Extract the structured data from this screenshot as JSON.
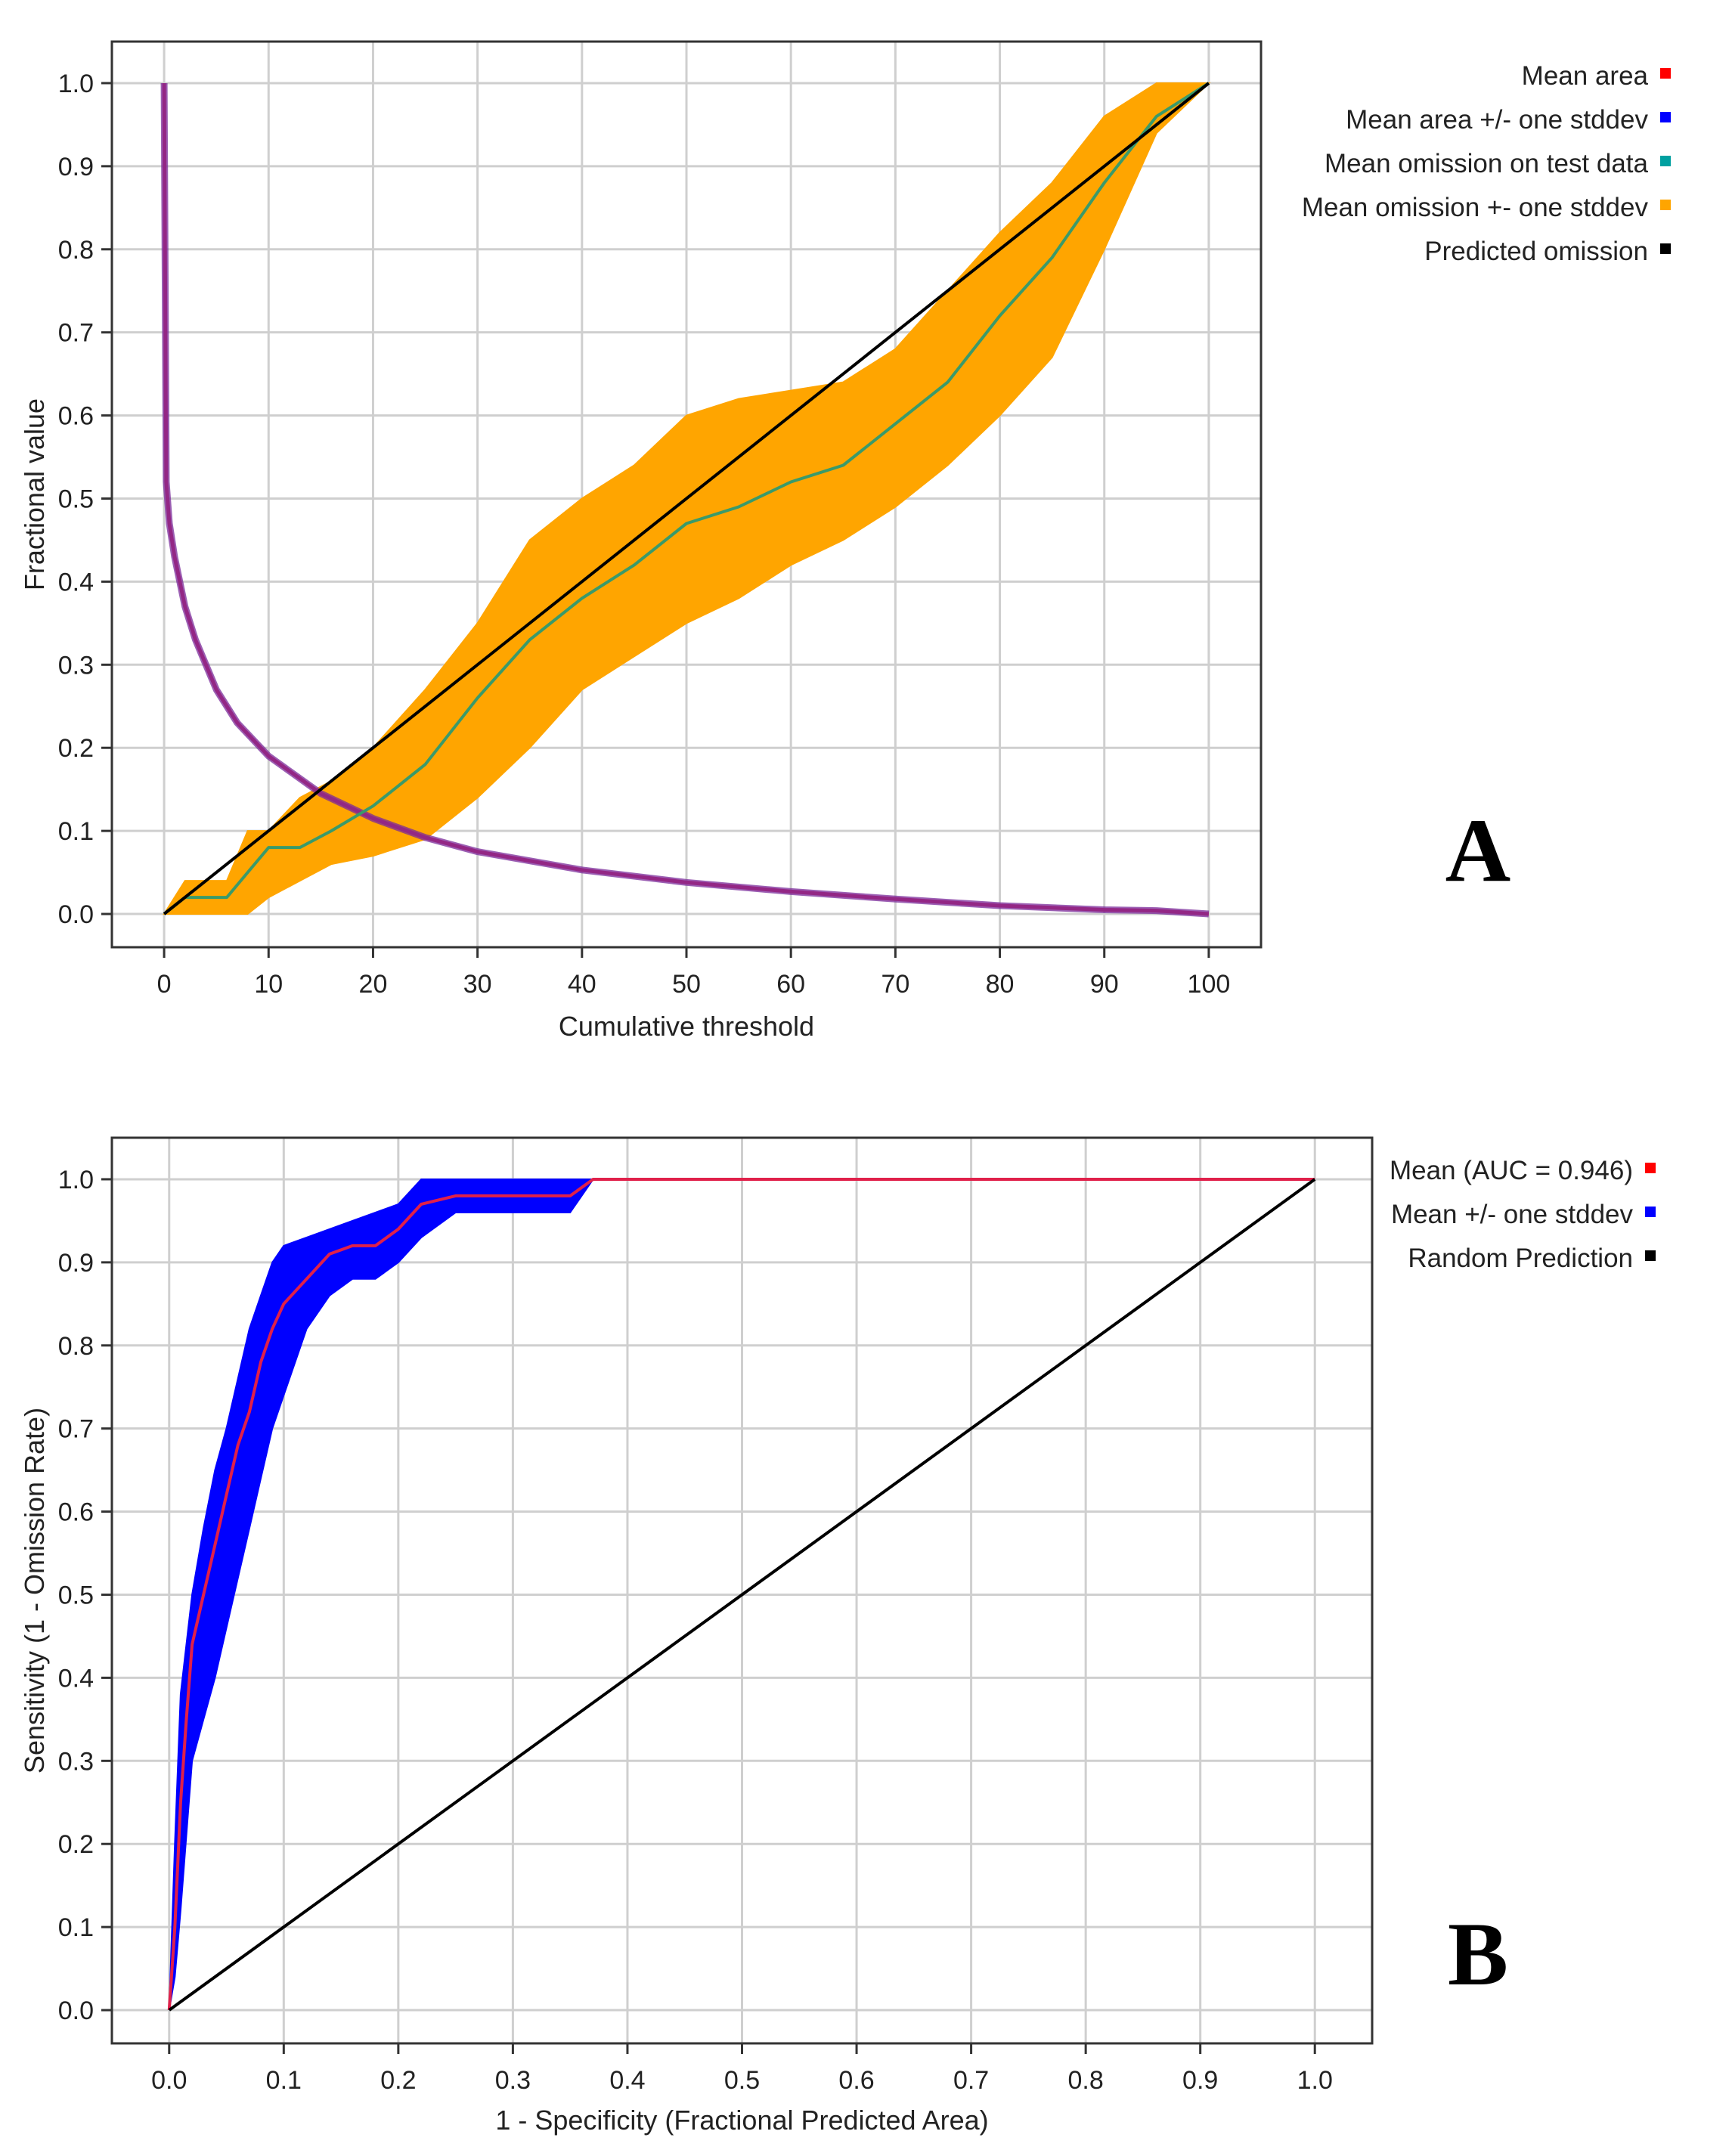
{
  "chart_data": [
    {
      "id": "A",
      "type": "line",
      "panel_label": "A",
      "xlabel": "Cumulative threshold",
      "ylabel": "Fractional value",
      "xlim": [
        -5,
        105
      ],
      "ylim": [
        -0.04,
        1.05
      ],
      "xticks": [
        0,
        10,
        20,
        30,
        40,
        50,
        60,
        70,
        80,
        90,
        100
      ],
      "yticks": [
        0.0,
        0.1,
        0.2,
        0.3,
        0.4,
        0.5,
        0.6,
        0.7,
        0.8,
        0.9,
        1.0
      ],
      "grid": true,
      "legend_position": "top-right outside",
      "legend": [
        {
          "label": "Mean area",
          "color": "#ff0000"
        },
        {
          "label": "Mean area +/- one stddev",
          "color": "#0000ff"
        },
        {
          "label": "Mean omission on test data",
          "color": "#00a0a0"
        },
        {
          "label": "Mean omission +- one stddev",
          "color": "#ffa500"
        },
        {
          "label": "Predicted omission",
          "color": "#000000"
        }
      ],
      "series": [
        {
          "name": "Mean area",
          "color": "#e0204a",
          "x": [
            0,
            0.2,
            0.5,
            1,
            2,
            3,
            5,
            7,
            10,
            15,
            20,
            25,
            30,
            40,
            50,
            60,
            70,
            80,
            90,
            95,
            100
          ],
          "y": [
            1.0,
            0.52,
            0.47,
            0.43,
            0.37,
            0.33,
            0.27,
            0.23,
            0.19,
            0.145,
            0.115,
            0.092,
            0.075,
            0.053,
            0.038,
            0.027,
            0.018,
            0.01,
            0.005,
            0.004,
            0.0
          ]
        },
        {
          "name": "Mean omission on test data",
          "color": "#3a9a6a",
          "x": [
            0,
            2,
            4,
            6,
            8,
            10,
            13,
            16,
            20,
            25,
            30,
            35,
            40,
            45,
            50,
            55,
            60,
            65,
            70,
            75,
            80,
            85,
            90,
            95,
            100
          ],
          "y": [
            0.0,
            0.02,
            0.02,
            0.02,
            0.05,
            0.08,
            0.08,
            0.1,
            0.13,
            0.18,
            0.26,
            0.33,
            0.38,
            0.42,
            0.47,
            0.49,
            0.52,
            0.54,
            0.59,
            0.64,
            0.72,
            0.79,
            0.88,
            0.96,
            1.0
          ]
        },
        {
          "name": "Mean omission +- one stddev",
          "color": "#ffa500",
          "x": [
            0,
            2,
            4,
            6,
            8,
            10,
            13,
            16,
            20,
            25,
            30,
            35,
            40,
            45,
            50,
            55,
            60,
            65,
            70,
            75,
            80,
            85,
            90,
            95,
            100
          ],
          "upper": [
            0.0,
            0.04,
            0.04,
            0.04,
            0.1,
            0.1,
            0.14,
            0.16,
            0.2,
            0.27,
            0.35,
            0.45,
            0.5,
            0.54,
            0.6,
            0.62,
            0.63,
            0.64,
            0.68,
            0.75,
            0.82,
            0.88,
            0.96,
            1.0,
            1.0
          ],
          "lower": [
            0.0,
            0.0,
            0.0,
            0.0,
            0.0,
            0.02,
            0.04,
            0.06,
            0.07,
            0.09,
            0.14,
            0.2,
            0.27,
            0.31,
            0.35,
            0.38,
            0.42,
            0.45,
            0.49,
            0.54,
            0.6,
            0.67,
            0.8,
            0.94,
            1.0
          ]
        },
        {
          "name": "Predicted omission",
          "color": "#000000",
          "x": [
            0,
            100
          ],
          "y": [
            0.0,
            1.0
          ]
        }
      ]
    },
    {
      "id": "B",
      "type": "line",
      "panel_label": "B",
      "xlabel": "1 - Specificity (Fractional Predicted Area)",
      "ylabel": "Sensitivity (1 - Omission Rate)",
      "xlim": [
        -0.05,
        1.05
      ],
      "ylim": [
        -0.04,
        1.05
      ],
      "xticks": [
        0.0,
        0.1,
        0.2,
        0.3,
        0.4,
        0.5,
        0.6,
        0.7,
        0.8,
        0.9,
        1.0
      ],
      "yticks": [
        0.0,
        0.1,
        0.2,
        0.3,
        0.4,
        0.5,
        0.6,
        0.7,
        0.8,
        0.9,
        1.0
      ],
      "grid": true,
      "legend_position": "top-right outside",
      "legend": [
        {
          "label": "Mean (AUC = 0.946)",
          "color": "#ff0000"
        },
        {
          "label": "Mean +/- one stddev",
          "color": "#0000ff"
        },
        {
          "label": "Random Prediction",
          "color": "#000000"
        }
      ],
      "series": [
        {
          "name": "Mean (AUC = 0.946)",
          "color": "#e0204a",
          "x": [
            0,
            0.005,
            0.01,
            0.015,
            0.02,
            0.03,
            0.04,
            0.05,
            0.06,
            0.07,
            0.08,
            0.09,
            0.1,
            0.12,
            0.14,
            0.16,
            0.18,
            0.2,
            0.22,
            0.25,
            0.3,
            0.35,
            0.37,
            0.5,
            0.7,
            1.0
          ],
          "y": [
            0,
            0.1,
            0.25,
            0.35,
            0.44,
            0.5,
            0.56,
            0.62,
            0.68,
            0.72,
            0.78,
            0.82,
            0.85,
            0.88,
            0.91,
            0.92,
            0.92,
            0.94,
            0.97,
            0.98,
            0.98,
            0.98,
            1.0,
            1.0,
            1.0,
            1.0
          ]
        },
        {
          "name": "Mean +/- one stddev",
          "color": "#0000ff",
          "x": [
            0,
            0.005,
            0.01,
            0.02,
            0.03,
            0.04,
            0.05,
            0.06,
            0.07,
            0.08,
            0.09,
            0.1,
            0.12,
            0.14,
            0.16,
            0.18,
            0.2,
            0.22,
            0.25,
            0.3,
            0.35,
            0.37,
            1.0
          ],
          "upper": [
            0,
            0.2,
            0.38,
            0.5,
            0.58,
            0.65,
            0.7,
            0.76,
            0.82,
            0.86,
            0.9,
            0.92,
            0.93,
            0.94,
            0.95,
            0.96,
            0.97,
            1.0,
            1.0,
            1.0,
            1.0,
            1.0,
            1.0
          ],
          "lower": [
            0,
            0.04,
            0.12,
            0.3,
            0.35,
            0.4,
            0.46,
            0.52,
            0.58,
            0.64,
            0.7,
            0.74,
            0.82,
            0.86,
            0.88,
            0.88,
            0.9,
            0.93,
            0.96,
            0.96,
            0.96,
            1.0,
            1.0
          ]
        },
        {
          "name": "Random Prediction",
          "color": "#000000",
          "x": [
            0,
            1
          ],
          "y": [
            0,
            1
          ]
        }
      ]
    }
  ]
}
